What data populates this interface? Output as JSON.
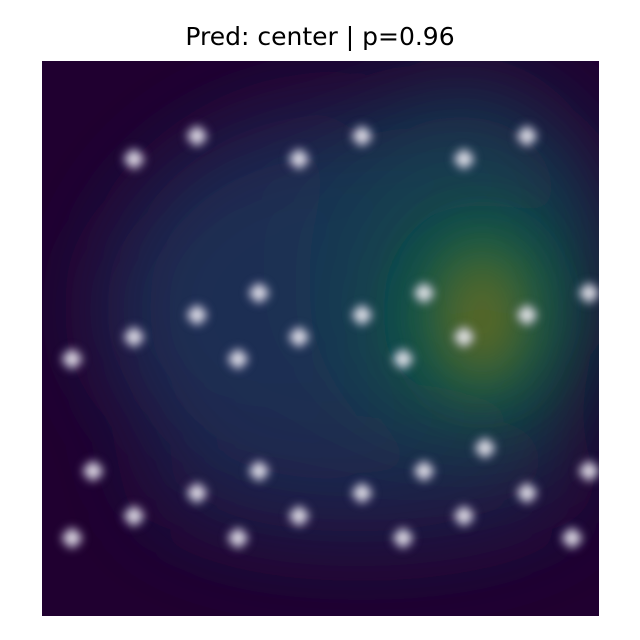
{
  "title": "Pred: center | p=0.96",
  "colors": {
    "background": "#1f0030",
    "mid": "#1e2a4e",
    "hot_green": "#0e5a46",
    "hot_yellow": "#7a6a14",
    "point_glow": "#e6dcf0"
  }
}
